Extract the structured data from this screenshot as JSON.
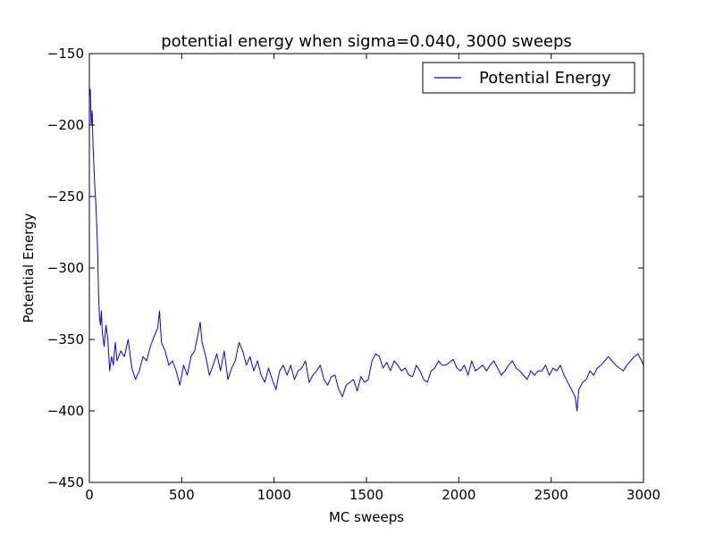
{
  "chart_data": {
    "type": "line",
    "title": "potential energy when sigma=0.040, 3000 sweeps",
    "xlabel": "MC sweeps",
    "ylabel": "Potential Energy",
    "xlim": [
      0,
      3000
    ],
    "ylim": [
      -450,
      -150
    ],
    "xticks": [
      0,
      500,
      1000,
      1500,
      2000,
      2500,
      3000
    ],
    "yticks": [
      -450,
      -400,
      -350,
      -300,
      -250,
      -200,
      -150
    ],
    "xtick_labels": [
      "0",
      "500",
      "1000",
      "1500",
      "2000",
      "2500",
      "3000"
    ],
    "ytick_labels": [
      "−450",
      "−400",
      "−350",
      "−300",
      "−250",
      "−200",
      "−150"
    ],
    "grid": false,
    "legend": {
      "position": "top-right",
      "entries": [
        "Potential Energy"
      ]
    },
    "series": [
      {
        "name": "Potential Energy",
        "color": "#0000ff",
        "x": [
          0,
          5,
          10,
          15,
          20,
          25,
          30,
          35,
          40,
          45,
          50,
          55,
          60,
          65,
          70,
          80,
          90,
          100,
          110,
          120,
          130,
          140,
          150,
          170,
          190,
          210,
          230,
          250,
          270,
          290,
          310,
          330,
          350,
          370,
          380,
          390,
          410,
          430,
          450,
          470,
          490,
          510,
          530,
          550,
          570,
          590,
          600,
          610,
          630,
          650,
          670,
          690,
          710,
          730,
          750,
          770,
          790,
          810,
          830,
          850,
          870,
          890,
          910,
          930,
          950,
          970,
          990,
          1010,
          1030,
          1050,
          1070,
          1090,
          1110,
          1130,
          1150,
          1170,
          1190,
          1210,
          1230,
          1250,
          1270,
          1290,
          1310,
          1330,
          1350,
          1370,
          1390,
          1410,
          1430,
          1450,
          1470,
          1490,
          1510,
          1530,
          1550,
          1570,
          1590,
          1610,
          1630,
          1650,
          1670,
          1690,
          1710,
          1730,
          1750,
          1770,
          1790,
          1810,
          1830,
          1850,
          1870,
          1890,
          1910,
          1930,
          1950,
          1970,
          1990,
          2010,
          2030,
          2050,
          2070,
          2090,
          2110,
          2130,
          2150,
          2170,
          2190,
          2210,
          2230,
          2250,
          2270,
          2290,
          2310,
          2330,
          2350,
          2370,
          2390,
          2410,
          2430,
          2450,
          2470,
          2490,
          2510,
          2530,
          2550,
          2570,
          2590,
          2610,
          2630,
          2640,
          2650,
          2670,
          2690,
          2710,
          2730,
          2750,
          2770,
          2790,
          2810,
          2830,
          2850,
          2870,
          2890,
          2910,
          2930,
          2950,
          2970,
          2990,
          3000
        ],
        "y": [
          -180,
          -175,
          -200,
          -190,
          -215,
          -230,
          -245,
          -255,
          -270,
          -290,
          -320,
          -335,
          -340,
          -330,
          -345,
          -355,
          -340,
          -350,
          -372,
          -362,
          -368,
          -352,
          -365,
          -358,
          -362,
          -350,
          -370,
          -378,
          -372,
          -362,
          -365,
          -355,
          -348,
          -342,
          -330,
          -352,
          -358,
          -368,
          -365,
          -372,
          -382,
          -368,
          -375,
          -362,
          -358,
          -345,
          -338,
          -352,
          -362,
          -375,
          -368,
          -360,
          -372,
          -358,
          -378,
          -370,
          -365,
          -352,
          -358,
          -368,
          -362,
          -372,
          -365,
          -375,
          -380,
          -370,
          -378,
          -385,
          -372,
          -368,
          -375,
          -368,
          -378,
          -372,
          -370,
          -365,
          -380,
          -375,
          -372,
          -368,
          -378,
          -382,
          -376,
          -375,
          -385,
          -390,
          -382,
          -380,
          -378,
          -386,
          -376,
          -380,
          -378,
          -365,
          -360,
          -362,
          -370,
          -366,
          -372,
          -365,
          -368,
          -372,
          -370,
          -375,
          -376,
          -368,
          -372,
          -378,
          -380,
          -372,
          -370,
          -365,
          -368,
          -368,
          -366,
          -364,
          -370,
          -372,
          -368,
          -375,
          -365,
          -372,
          -370,
          -368,
          -372,
          -368,
          -365,
          -370,
          -375,
          -372,
          -368,
          -365,
          -370,
          -372,
          -375,
          -378,
          -372,
          -375,
          -372,
          -372,
          -368,
          -375,
          -370,
          -372,
          -368,
          -375,
          -380,
          -385,
          -390,
          -400,
          -385,
          -380,
          -378,
          -372,
          -375,
          -370,
          -368,
          -365,
          -362,
          -365,
          -368,
          -370,
          -372,
          -368,
          -365,
          -362,
          -360,
          -365,
          -368
        ]
      }
    ]
  }
}
